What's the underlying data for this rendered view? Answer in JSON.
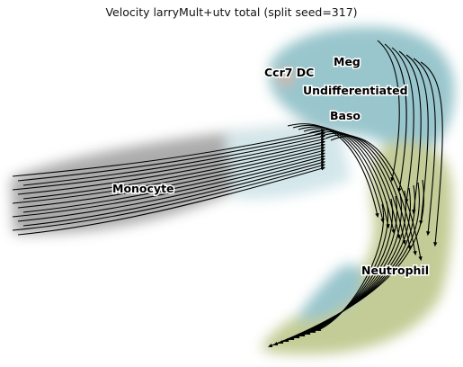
{
  "chart_data": {
    "type": "scatter",
    "title": "Velocity larryMult+utv total (split seed=317)",
    "xlabel": "",
    "ylabel": "",
    "grid": false,
    "legend": "none (labels placed on clusters)",
    "overlay": "velocity streamlines with arrowheads",
    "clusters": [
      {
        "name": "Meg",
        "color": "#8ec0c7"
      },
      {
        "name": "Ccr7 DC",
        "color": "#f2a27e"
      },
      {
        "name": "Undifferentiated",
        "color": "#8ec0c7"
      },
      {
        "name": "Baso",
        "color": "#9fc9d1"
      },
      {
        "name": "Monocyte",
        "color": "#9e9e9e"
      },
      {
        "name": "Neutrophil",
        "color": "#bfc88a"
      }
    ]
  }
}
